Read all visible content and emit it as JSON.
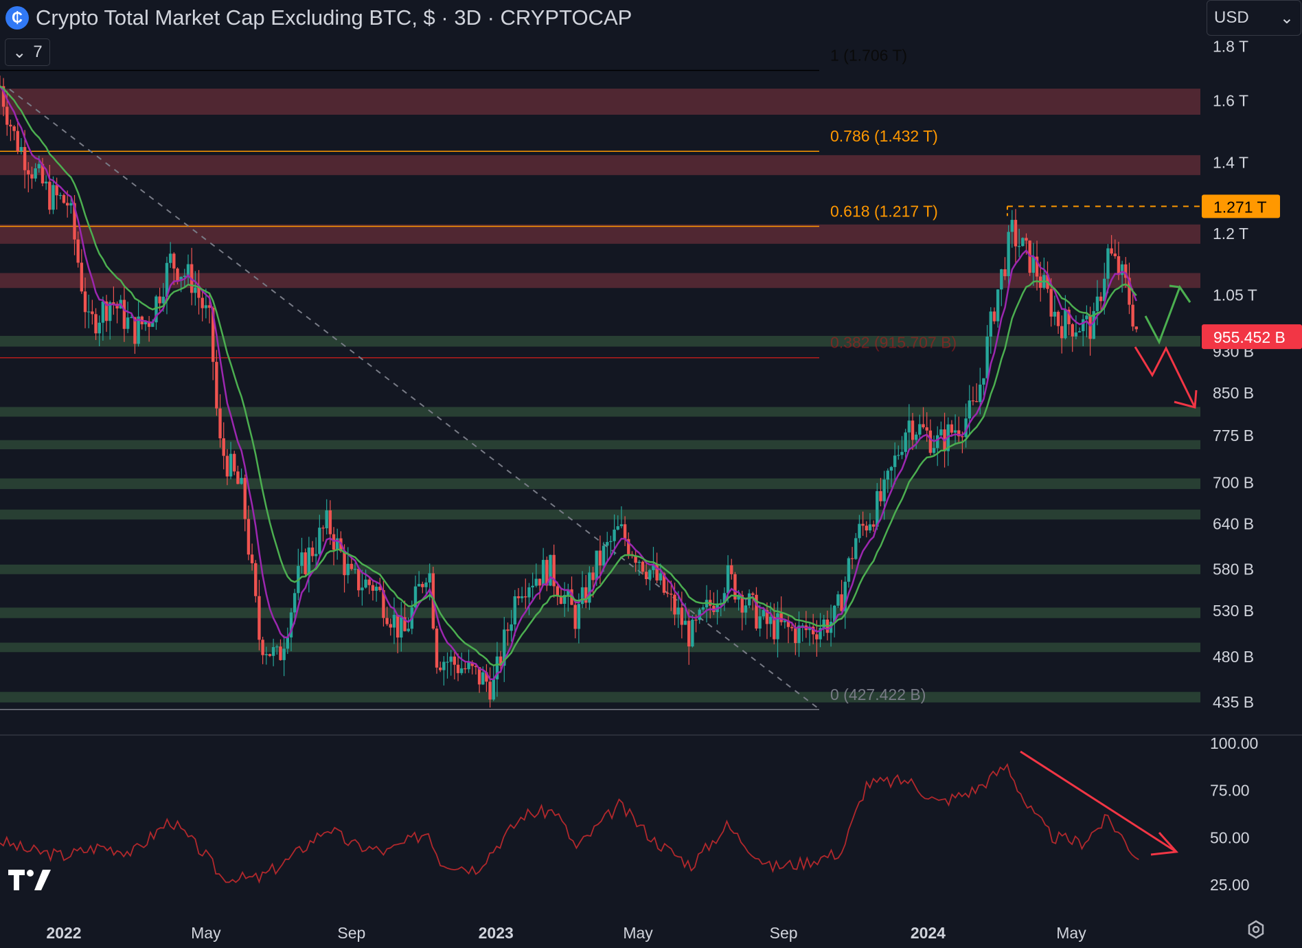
{
  "header": {
    "title": "Crypto Total Market Cap Excluding BTC, $ · 3D · CRYPTOCAP",
    "indicator_count": "7",
    "currency": "USD"
  },
  "colors": {
    "background": "#131722",
    "up": "#26a69a",
    "down": "#ef5350",
    "ema_fast": "#9c27b0",
    "ema_slow": "#4caf50",
    "fib_orange": "#ff9800",
    "resistance_zone": "#5c2a35",
    "support_zone": "#2e4a38",
    "rsi_line": "#b2282c"
  },
  "chart_data": [
    {
      "type": "candlestick",
      "title": "Crypto Total Market Cap Excluding BTC, $ · 3D · CRYPTOCAP",
      "ylabel": "",
      "y_scale": "log",
      "y_ticks": [
        {
          "label": "1.8 T",
          "value": 1800
        },
        {
          "label": "1.6 T",
          "value": 1600
        },
        {
          "label": "1.4 T",
          "value": 1400
        },
        {
          "label": "1.2 T",
          "value": 1200
        },
        {
          "label": "1.05 T",
          "value": 1050
        },
        {
          "label": "930 B",
          "value": 930
        },
        {
          "label": "850 B",
          "value": 850
        },
        {
          "label": "775 B",
          "value": 775
        },
        {
          "label": "700 B",
          "value": 700
        },
        {
          "label": "640 B",
          "value": 640
        },
        {
          "label": "580 B",
          "value": 580
        },
        {
          "label": "530 B",
          "value": 530
        },
        {
          "label": "480 B",
          "value": 480
        },
        {
          "label": "435 B",
          "value": 435
        }
      ],
      "x_ticks": [
        {
          "label": "2022",
          "date": "2022-01-01",
          "bold": true
        },
        {
          "label": "May",
          "date": "2022-05-01",
          "bold": false
        },
        {
          "label": "Sep",
          "date": "2022-09-01",
          "bold": false
        },
        {
          "label": "2023",
          "date": "2023-01-01",
          "bold": true
        },
        {
          "label": "May",
          "date": "2023-05-01",
          "bold": false
        },
        {
          "label": "Sep",
          "date": "2023-09-01",
          "bold": false
        },
        {
          "label": "2024",
          "date": "2024-01-01",
          "bold": true
        },
        {
          "label": "May",
          "date": "2024-05-01",
          "bold": false
        }
      ],
      "close_path": [
        {
          "date": "2021-11-08",
          "value": 1650
        },
        {
          "date": "2021-11-20",
          "value": 1480
        },
        {
          "date": "2021-12-05",
          "value": 1380
        },
        {
          "date": "2021-12-20",
          "value": 1300
        },
        {
          "date": "2022-01-05",
          "value": 1280
        },
        {
          "date": "2022-01-22",
          "value": 980
        },
        {
          "date": "2022-02-10",
          "value": 1040
        },
        {
          "date": "2022-03-01",
          "value": 970
        },
        {
          "date": "2022-03-15",
          "value": 1000
        },
        {
          "date": "2022-04-01",
          "value": 1130
        },
        {
          "date": "2022-04-20",
          "value": 1080
        },
        {
          "date": "2022-05-05",
          "value": 980
        },
        {
          "date": "2022-05-12",
          "value": 760
        },
        {
          "date": "2022-06-01",
          "value": 680
        },
        {
          "date": "2022-06-15",
          "value": 500
        },
        {
          "date": "2022-07-01",
          "value": 475
        },
        {
          "date": "2022-07-20",
          "value": 580
        },
        {
          "date": "2022-08-12",
          "value": 640
        },
        {
          "date": "2022-09-01",
          "value": 565
        },
        {
          "date": "2022-09-20",
          "value": 560
        },
        {
          "date": "2022-10-15",
          "value": 500
        },
        {
          "date": "2022-11-05",
          "value": 590
        },
        {
          "date": "2022-11-12",
          "value": 480
        },
        {
          "date": "2022-12-01",
          "value": 470
        },
        {
          "date": "2022-12-30",
          "value": 450
        },
        {
          "date": "2023-01-20",
          "value": 560
        },
        {
          "date": "2023-02-15",
          "value": 580
        },
        {
          "date": "2023-03-10",
          "value": 520
        },
        {
          "date": "2023-03-25",
          "value": 580
        },
        {
          "date": "2023-04-15",
          "value": 630
        },
        {
          "date": "2023-05-15",
          "value": 570
        },
        {
          "date": "2023-06-15",
          "value": 500
        },
        {
          "date": "2023-07-15",
          "value": 570
        },
        {
          "date": "2023-08-15",
          "value": 515
        },
        {
          "date": "2023-09-15",
          "value": 505
        },
        {
          "date": "2023-10-15",
          "value": 520
        },
        {
          "date": "2023-11-01",
          "value": 620
        },
        {
          "date": "2023-11-25",
          "value": 680
        },
        {
          "date": "2023-12-15",
          "value": 800
        },
        {
          "date": "2024-01-10",
          "value": 760
        },
        {
          "date": "2024-02-10",
          "value": 820
        },
        {
          "date": "2024-02-28",
          "value": 1050
        },
        {
          "date": "2024-03-12",
          "value": 1200
        },
        {
          "date": "2024-04-01",
          "value": 1110
        },
        {
          "date": "2024-04-20",
          "value": 990
        },
        {
          "date": "2024-05-20",
          "value": 980
        },
        {
          "date": "2024-06-01",
          "value": 1150
        },
        {
          "date": "2024-06-15",
          "value": 1080
        },
        {
          "date": "2024-06-27",
          "value": 955.452
        }
      ],
      "fib_levels": [
        {
          "label": "1 (1.706 T)",
          "value": 1706,
          "color": "#000000"
        },
        {
          "label": "0.786 (1.432 T)",
          "value": 1432,
          "color": "#ff9800"
        },
        {
          "label": "0.618 (1.217 T)",
          "value": 1217,
          "color": "#ff9800"
        },
        {
          "label": "0.382 (915.707 B)",
          "value": 915.707,
          "color": "#b71c1c"
        },
        {
          "label": "0 (427.422 B)",
          "value": 427.422,
          "color": "#787b86"
        }
      ],
      "zones": [
        {
          "kind": "resistance",
          "low": 1550,
          "high": 1640
        },
        {
          "kind": "resistance",
          "low": 1360,
          "high": 1420
        },
        {
          "kind": "resistance",
          "low": 1172,
          "high": 1222
        },
        {
          "kind": "resistance",
          "low": 1065,
          "high": 1100
        },
        {
          "kind": "support",
          "low": 938,
          "high": 960
        },
        {
          "kind": "support",
          "low": 806,
          "high": 823
        },
        {
          "kind": "support",
          "low": 751,
          "high": 766
        },
        {
          "kind": "support",
          "low": 689,
          "high": 705
        },
        {
          "kind": "support",
          "low": 645,
          "high": 659
        },
        {
          "kind": "support",
          "low": 573,
          "high": 585
        },
        {
          "kind": "support",
          "low": 521,
          "high": 533
        },
        {
          "kind": "support",
          "low": 484,
          "high": 494
        },
        {
          "kind": "support",
          "low": 434,
          "high": 444
        }
      ],
      "high_marker": {
        "label": "1.271 T",
        "value": 1271
      },
      "last_price": {
        "label": "955.452 B",
        "value": 955.452
      },
      "scenarios": [
        "up",
        "down"
      ]
    },
    {
      "type": "line",
      "title": "",
      "ylabel": "",
      "ylim": [
        25,
        100
      ],
      "y_ticks": [
        "100.00",
        "75.00",
        "50.00",
        "25.00"
      ],
      "series": [
        {
          "values": [
            {
              "date": "2021-11-08",
              "value": 48
            },
            {
              "date": "2021-12-01",
              "value": 43
            },
            {
              "date": "2022-01-01",
              "value": 40
            },
            {
              "date": "2022-02-01",
              "value": 45
            },
            {
              "date": "2022-03-01",
              "value": 42
            },
            {
              "date": "2022-04-01",
              "value": 59
            },
            {
              "date": "2022-05-01",
              "value": 40
            },
            {
              "date": "2022-05-15",
              "value": 28
            },
            {
              "date": "2022-06-15",
              "value": 28
            },
            {
              "date": "2022-07-10",
              "value": 38
            },
            {
              "date": "2022-08-12",
              "value": 55
            },
            {
              "date": "2022-09-01",
              "value": 46
            },
            {
              "date": "2022-10-01",
              "value": 42
            },
            {
              "date": "2022-11-05",
              "value": 53
            },
            {
              "date": "2022-11-15",
              "value": 37
            },
            {
              "date": "2022-12-15",
              "value": 33
            },
            {
              "date": "2023-01-25",
              "value": 62
            },
            {
              "date": "2023-02-20",
              "value": 64
            },
            {
              "date": "2023-03-10",
              "value": 44
            },
            {
              "date": "2023-04-15",
              "value": 67
            },
            {
              "date": "2023-05-15",
              "value": 48
            },
            {
              "date": "2023-06-15",
              "value": 35
            },
            {
              "date": "2023-07-15",
              "value": 56
            },
            {
              "date": "2023-08-20",
              "value": 34
            },
            {
              "date": "2023-09-15",
              "value": 36
            },
            {
              "date": "2023-10-20",
              "value": 42
            },
            {
              "date": "2023-11-10",
              "value": 78
            },
            {
              "date": "2023-12-15",
              "value": 80
            },
            {
              "date": "2024-01-10",
              "value": 68
            },
            {
              "date": "2024-02-10",
              "value": 75
            },
            {
              "date": "2024-03-08",
              "value": 88
            },
            {
              "date": "2024-03-25",
              "value": 66
            },
            {
              "date": "2024-04-15",
              "value": 50
            },
            {
              "date": "2024-05-10",
              "value": 47
            },
            {
              "date": "2024-06-01",
              "value": 60
            },
            {
              "date": "2024-06-27",
              "value": 38
            }
          ]
        }
      ]
    }
  ]
}
